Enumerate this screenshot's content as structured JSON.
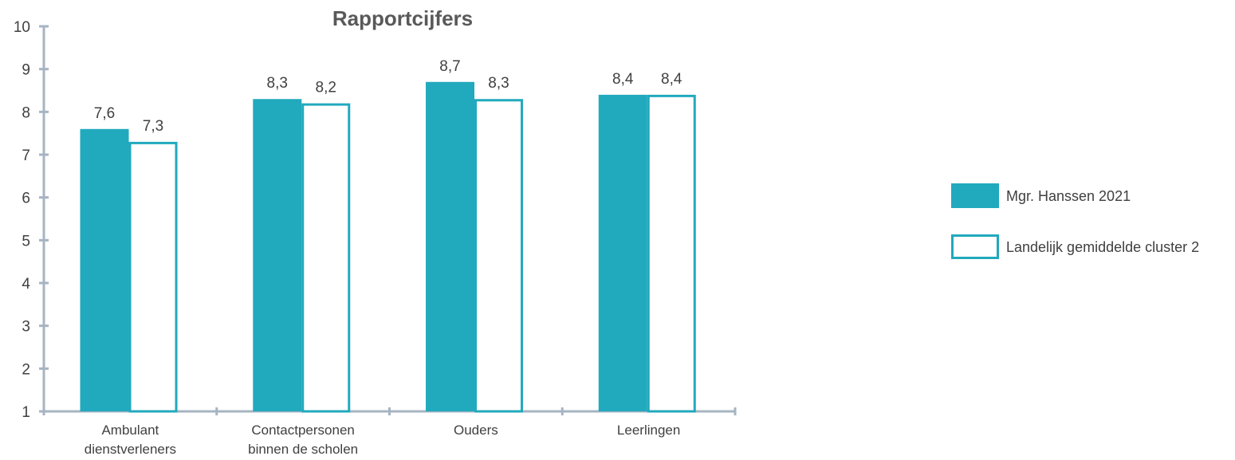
{
  "chart_data": {
    "type": "bar",
    "title": "Rapportcijfers",
    "xlabel": "",
    "ylabel": "",
    "ylim": [
      1,
      10
    ],
    "yticks": [
      1,
      2,
      3,
      4,
      5,
      6,
      7,
      8,
      9,
      10
    ],
    "categories": [
      [
        "Ambulant",
        "dienstverleners"
      ],
      [
        "Contactpersonen",
        "binnen de scholen"
      ],
      [
        "Ouders"
      ],
      [
        "Leerlingen"
      ]
    ],
    "series": [
      {
        "name": "Mgr. Hanssen 2021",
        "values": [
          7.6,
          8.3,
          8.7,
          8.4
        ],
        "labels": [
          "7,6",
          "8,3",
          "8,7",
          "8,4"
        ],
        "style": "filled"
      },
      {
        "name": "Landelijk gemiddelde cluster 2",
        "values": [
          7.3,
          8.2,
          8.3,
          8.4
        ],
        "labels": [
          "7,3",
          "8,2",
          "8,3",
          "8,4"
        ],
        "style": "outline"
      }
    ],
    "legend_position": "right",
    "grid": false,
    "colors": {
      "series": "#21a9bd",
      "axis": "#a6b4c2",
      "text": "#404040",
      "title": "#595959"
    }
  }
}
